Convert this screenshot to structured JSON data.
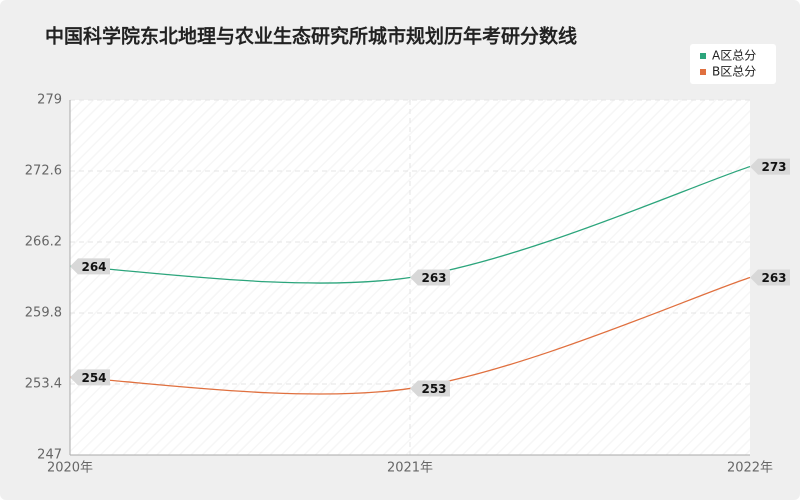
{
  "chart_data": {
    "type": "line",
    "title": "中国科学院东北地理与农业生态研究所城市规划历年考研分数线",
    "categories": [
      "2020年",
      "2021年",
      "2022年"
    ],
    "series": [
      {
        "name": "A区总分",
        "color": "#2ca57c",
        "values": [
          264,
          263,
          273
        ]
      },
      {
        "name": "B区总分",
        "color": "#e0703f",
        "values": [
          254,
          253,
          263
        ]
      }
    ],
    "ylim": [
      247,
      279
    ],
    "yticks": [
      247,
      253.4,
      259.8,
      266.2,
      272.6,
      279
    ],
    "grid": true,
    "legend": "top-right"
  }
}
